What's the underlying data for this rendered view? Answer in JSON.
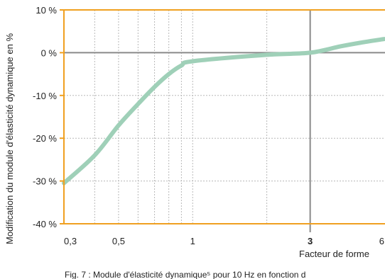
{
  "colors": {
    "axis": "#f0a020",
    "grid": "#b8b8b8",
    "reference": "#8a8a8a",
    "curve": "#9fd0b8",
    "background": "#ffffff"
  },
  "chart_data": {
    "type": "line",
    "xlabel": "Facteur de forme",
    "ylabel": "Modification du module d'élasticité dynamique en %",
    "caption": "Fig. 7 : Module d'élasticité dynamique⁵ pour 10 Hz en fonction d",
    "x_scale": "log",
    "xlim": [
      0.3,
      6
    ],
    "ylim": [
      -40,
      10
    ],
    "grid": true,
    "x_ticks": [
      {
        "value": 0.3,
        "label": "0,3",
        "bold": false
      },
      {
        "value": 0.5,
        "label": "0,5",
        "bold": false
      },
      {
        "value": 1,
        "label": "1",
        "bold": false
      },
      {
        "value": 3,
        "label": "3",
        "bold": true
      },
      {
        "value": 6,
        "label": "6",
        "bold": false
      }
    ],
    "x_gridlines": [
      0.4,
      0.5,
      0.6,
      0.7,
      0.8,
      0.9,
      1,
      2
    ],
    "y_ticks": [
      {
        "value": 10,
        "label": "10 %"
      },
      {
        "value": 0,
        "label": "0 %"
      },
      {
        "value": -10,
        "label": "-10 %"
      },
      {
        "value": -20,
        "label": "-20 %"
      },
      {
        "value": -30,
        "label": "-30 %"
      },
      {
        "value": -40,
        "label": "-40 %"
      }
    ],
    "reference_lines": {
      "x": 3,
      "y": 0
    },
    "series": [
      {
        "x": [
          0.3,
          0.4,
          0.5,
          0.6,
          0.7,
          0.8,
          0.9,
          1,
          2,
          3,
          4,
          5,
          6
        ],
        "y": [
          -30.5,
          -24,
          -17,
          -12,
          -8,
          -5,
          -3,
          -2,
          -0.5,
          0,
          1.5,
          2.5,
          3.2
        ]
      }
    ]
  }
}
